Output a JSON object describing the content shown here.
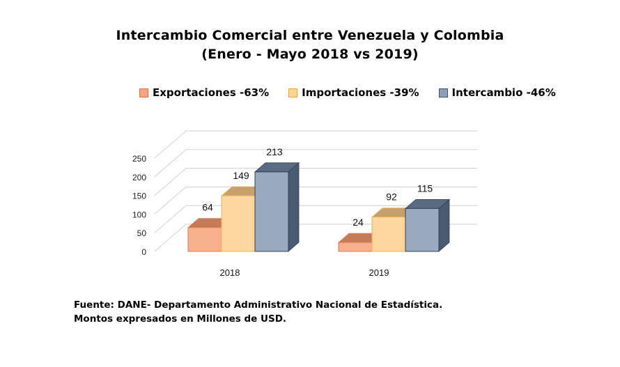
{
  "chart_data": {
    "type": "bar",
    "title": "Intercambio Comercial entre Venezuela y Colombia",
    "subtitle": "(Enero - Mayo 2018 vs 2019)",
    "categories": [
      "2018",
      "2019"
    ],
    "series": [
      {
        "name": "Exportaciones -63%",
        "values": [
          64,
          24
        ],
        "color": "#f5a582"
      },
      {
        "name": "Importaciones -39%",
        "values": [
          149,
          92
        ],
        "color": "#fdd399"
      },
      {
        "name": "Intercambio -46%",
        "values": [
          213,
          115
        ],
        "color": "#8ea0b8"
      }
    ],
    "ylim": [
      0,
      250
    ],
    "yticks": [
      "0",
      "50",
      "100",
      "150",
      "200",
      "250"
    ],
    "grid": true,
    "legend_position": "top"
  },
  "footnote": {
    "line1": "Fuente: DANE- Departamento Administrativo Nacional de Estadística.",
    "line2": "Montos expresados en Millones de USD."
  }
}
